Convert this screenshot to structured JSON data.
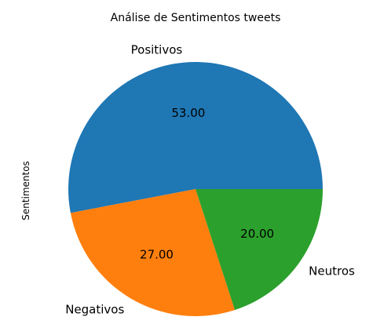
{
  "chart_data": {
    "type": "pie",
    "title": "Análise de Sentimentos tweets",
    "ylabel": "Sentimentos",
    "categories": [
      "Positivos",
      "Negativos",
      "Neutros"
    ],
    "values": [
      53.0,
      27.0,
      20.0
    ],
    "value_labels": [
      "53.00",
      "27.00",
      "20.00"
    ],
    "colors": [
      "#1f77b4",
      "#ff7f0e",
      "#2ca02c"
    ],
    "start_angle_deg": 0,
    "direction": "counterclockwise"
  }
}
